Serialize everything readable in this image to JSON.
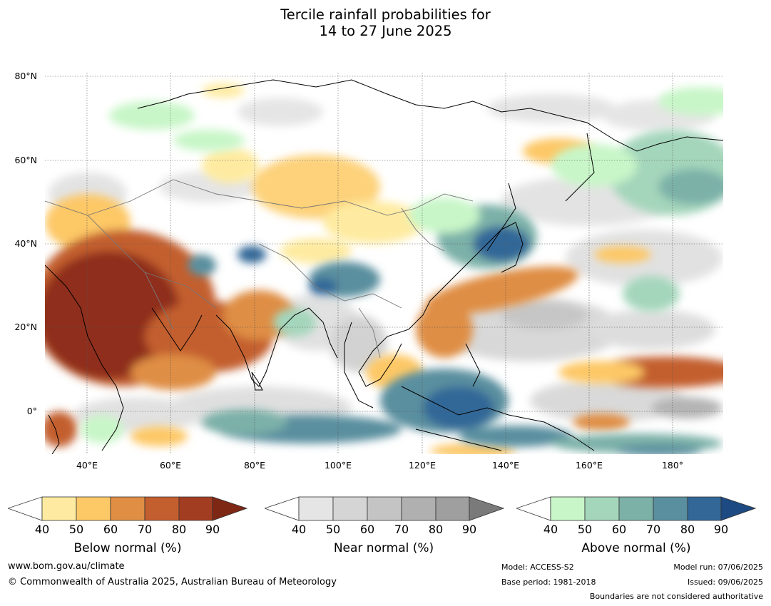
{
  "title": {
    "line1": "Tercile rainfall probabilities for",
    "line2": "14 to 27 June 2025"
  },
  "map": {
    "latitude_labels": [
      "80°N",
      "60°N",
      "40°N",
      "20°N",
      "0°"
    ],
    "longitude_labels": [
      "40°E",
      "60°E",
      "80°E",
      "100°E",
      "120°E",
      "140°E",
      "160°E",
      "180°"
    ],
    "extent": {
      "lon_min": 30,
      "lon_max": 192,
      "lat_min": -10,
      "lat_max": 81
    }
  },
  "colorbars": [
    {
      "label": "Below normal (%)",
      "ticks": [
        "40",
        "50",
        "60",
        "70",
        "80",
        "90"
      ],
      "colors": [
        "#ffffff",
        "#feeba1",
        "#fdc866",
        "#df8e44",
        "#c35e2e",
        "#a33d22",
        "#7e2715"
      ]
    },
    {
      "label": "Near normal (%)",
      "ticks": [
        "40",
        "50",
        "60",
        "70",
        "80",
        "90"
      ],
      "colors": [
        "#ffffff",
        "#e5e5e5",
        "#d5d5d5",
        "#c4c4c4",
        "#b0b0b0",
        "#9f9f9f",
        "#7a7a7a"
      ]
    },
    {
      "label": "Above normal (%)",
      "ticks": [
        "40",
        "50",
        "60",
        "70",
        "80",
        "90"
      ],
      "colors": [
        "#ffffff",
        "#c8f6c8",
        "#a4d6bb",
        "#7cb1a8",
        "#5a8f9f",
        "#326798",
        "#1d4a82"
      ]
    }
  ],
  "footer": {
    "website": "www.bom.gov.au/climate",
    "copyright": "© Commonwealth of Australia 2025, Australian Bureau of Meteorology",
    "model": "Model: ACCESS-S2",
    "base_period": "Base period: 1981-2018",
    "model_run": "Model run: 07/06/2025",
    "issued": "Issued: 09/06/2025",
    "disclaimer": "Boundaries are not considered authoritative"
  }
}
